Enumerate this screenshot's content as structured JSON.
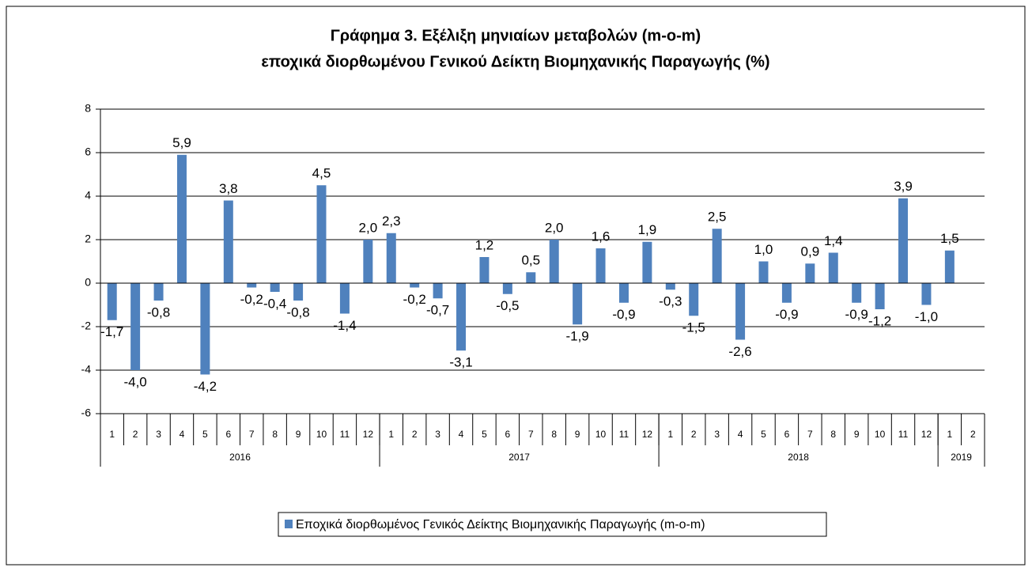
{
  "chart_data": {
    "type": "bar",
    "title": [
      "Γράφημα 3. Εξέλιξη μηνιαίων μεταβολών (m-o-m)",
      "εποχικά διορθωμένου  Γενικού  Δείκτη Βιομηχανικής Παραγωγής (%)"
    ],
    "groups": [
      {
        "name": "2016",
        "categories": [
          "1",
          "2",
          "3",
          "4",
          "5",
          "6",
          "7",
          "8",
          "9",
          "10",
          "11",
          "12"
        ]
      },
      {
        "name": "2017",
        "categories": [
          "1",
          "2",
          "3",
          "4",
          "5",
          "6",
          "7",
          "8",
          "9",
          "10",
          "11",
          "12"
        ]
      },
      {
        "name": "2018",
        "categories": [
          "1",
          "2",
          "3",
          "4",
          "5",
          "6",
          "7",
          "8",
          "9",
          "10",
          "11",
          "12"
        ]
      },
      {
        "name": "2019",
        "categories": [
          "1",
          "2"
        ]
      }
    ],
    "series": [
      {
        "name": "Εποχικά διορθωμένος Γενικός Δείκτης Βιομηχανικής Παραγωγής (m-o-m)",
        "color": "#4f81bd",
        "values": [
          -1.7,
          -4.0,
          -0.8,
          5.9,
          -4.2,
          3.8,
          -0.2,
          -0.4,
          -0.8,
          4.5,
          -1.4,
          2.0,
          2.3,
          -0.2,
          -0.7,
          -3.1,
          1.2,
          -0.5,
          0.5,
          2.0,
          -1.9,
          1.6,
          -0.9,
          1.9,
          -0.3,
          -1.5,
          2.5,
          -2.6,
          1.0,
          -0.9,
          0.9,
          1.4,
          -0.9,
          -1.2,
          3.9,
          -1.0,
          1.5,
          null
        ],
        "value_labels": [
          "-1,7",
          "-4,0",
          "-0,8",
          "5,9",
          "-4,2",
          "3,8",
          "-0,2",
          "-0,4",
          "-0,8",
          "4,5",
          "-1,4",
          "2,0",
          "2,3",
          "-0,2",
          "-0,7",
          "-3,1",
          "1,2",
          "-0,5",
          "0,5",
          "2,0",
          "-1,9",
          "1,6",
          "-0,9",
          "1,9",
          "-0,3",
          "-1,5",
          "2,5",
          "-2,6",
          "1,0",
          "-0,9",
          "0,9",
          "1,4",
          "-0,9",
          "-1,2",
          "3,9",
          "-1,0",
          "1,5",
          null
        ]
      }
    ],
    "ylim": [
      -6,
      8
    ],
    "yticks": [
      -6,
      -4,
      -2,
      0,
      2,
      4,
      6,
      8
    ],
    "grid": true,
    "legend": "bottom"
  }
}
